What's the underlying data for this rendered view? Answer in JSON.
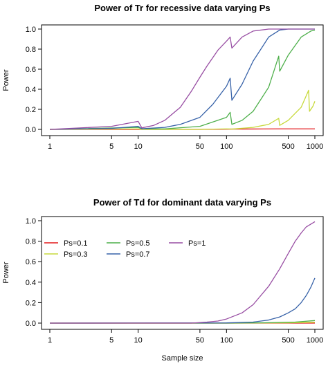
{
  "chart_data": [
    {
      "type": "line",
      "title": "Power of Tr for recessive data varying Ps",
      "xlabel": "",
      "ylabel": "Power",
      "x_scale": "log",
      "xlim": [
        1,
        1000
      ],
      "ylim": [
        0,
        1
      ],
      "xticks": [
        1,
        5,
        10,
        50,
        100,
        500,
        1000
      ],
      "xtick_labels": [
        "1",
        "5",
        "10",
        "50",
        "100",
        "500",
        "1000"
      ],
      "yticks": [
        0,
        0.2,
        0.4,
        0.6,
        0.8,
        1
      ],
      "ytick_labels": [
        "0.0",
        "0.2",
        "0.4",
        "0.6",
        "0.8",
        "1.0"
      ],
      "grid": false,
      "legend": null,
      "series": [
        {
          "color": "#e41a1c",
          "x": [
            1,
            10,
            11,
            50,
            100,
            115,
            200,
            400,
            1000
          ],
          "y": [
            0,
            0,
            0,
            0,
            0.002,
            0.003,
            0.004,
            0.005,
            0.005
          ]
        },
        {
          "color": "#c7d93a",
          "x": [
            1,
            10,
            11,
            50,
            100,
            115,
            200,
            300,
            390,
            400,
            500,
            700,
            850,
            870,
            950,
            1000
          ],
          "y": [
            0,
            0.005,
            0,
            0,
            0.005,
            0.003,
            0.02,
            0.05,
            0.11,
            0.04,
            0.09,
            0.22,
            0.39,
            0.18,
            0.23,
            0.28
          ]
        },
        {
          "color": "#4daf4a",
          "x": [
            1,
            10,
            11,
            20,
            50,
            100,
            110,
            115,
            150,
            200,
            300,
            390,
            400,
            500,
            700,
            900,
            1000
          ],
          "y": [
            0,
            0.02,
            0.005,
            0.005,
            0.03,
            0.12,
            0.17,
            0.05,
            0.09,
            0.18,
            0.42,
            0.73,
            0.58,
            0.74,
            0.92,
            0.98,
            0.99
          ]
        },
        {
          "color": "#3762a8",
          "x": [
            1,
            5,
            10,
            11,
            20,
            30,
            50,
            70,
            100,
            110,
            115,
            150,
            200,
            300,
            400,
            500,
            1000
          ],
          "y": [
            0,
            0.01,
            0.03,
            0.007,
            0.02,
            0.05,
            0.12,
            0.25,
            0.43,
            0.51,
            0.29,
            0.45,
            0.68,
            0.92,
            0.99,
            1,
            1
          ]
        },
        {
          "color": "#984ea3",
          "x": [
            1,
            5,
            10,
            11,
            15,
            20,
            30,
            40,
            50,
            60,
            80,
            100,
            110,
            115,
            150,
            200,
            300,
            400,
            1000
          ],
          "y": [
            0,
            0.03,
            0.08,
            0.015,
            0.04,
            0.09,
            0.22,
            0.38,
            0.52,
            0.63,
            0.79,
            0.88,
            0.92,
            0.81,
            0.92,
            0.98,
            1,
            1,
            1
          ]
        }
      ]
    },
    {
      "type": "line",
      "title": "Power of Td for dominant data varying Ps",
      "xlabel": "Sample size",
      "ylabel": "Power",
      "x_scale": "log",
      "xlim": [
        1,
        1000
      ],
      "ylim": [
        0,
        1
      ],
      "xticks": [
        1,
        5,
        10,
        50,
        100,
        500,
        1000
      ],
      "xtick_labels": [
        "1",
        "5",
        "10",
        "50",
        "100",
        "500",
        "1000"
      ],
      "yticks": [
        0,
        0.2,
        0.4,
        0.6,
        0.8,
        1
      ],
      "ytick_labels": [
        "0.0",
        "0.2",
        "0.4",
        "0.6",
        "0.8",
        "1.0"
      ],
      "grid": false,
      "legend": "top-left",
      "series": [
        {
          "name": "Ps=0.1",
          "color": "#e41a1c",
          "x": [
            1,
            1000
          ],
          "y": [
            0,
            0
          ]
        },
        {
          "name": "Ps=0.3",
          "color": "#c7d93a",
          "x": [
            1,
            100,
            500,
            1000
          ],
          "y": [
            0,
            0,
            0.003,
            0.008
          ]
        },
        {
          "name": "Ps=0.5",
          "color": "#4daf4a",
          "x": [
            1,
            100,
            300,
            600,
            1000
          ],
          "y": [
            0,
            0,
            0.004,
            0.01,
            0.025
          ]
        },
        {
          "name": "Ps=0.7",
          "color": "#3762a8",
          "x": [
            1,
            100,
            200,
            300,
            400,
            500,
            600,
            700,
            800,
            900,
            1000
          ],
          "y": [
            0,
            0.002,
            0.01,
            0.03,
            0.06,
            0.1,
            0.14,
            0.2,
            0.27,
            0.35,
            0.44
          ]
        },
        {
          "name": "Ps=1",
          "color": "#984ea3",
          "x": [
            1,
            40,
            60,
            80,
            100,
            150,
            200,
            300,
            400,
            500,
            600,
            700,
            800,
            1000
          ],
          "y": [
            0,
            0,
            0.01,
            0.02,
            0.04,
            0.1,
            0.18,
            0.36,
            0.53,
            0.68,
            0.8,
            0.88,
            0.94,
            0.99
          ]
        }
      ]
    }
  ]
}
